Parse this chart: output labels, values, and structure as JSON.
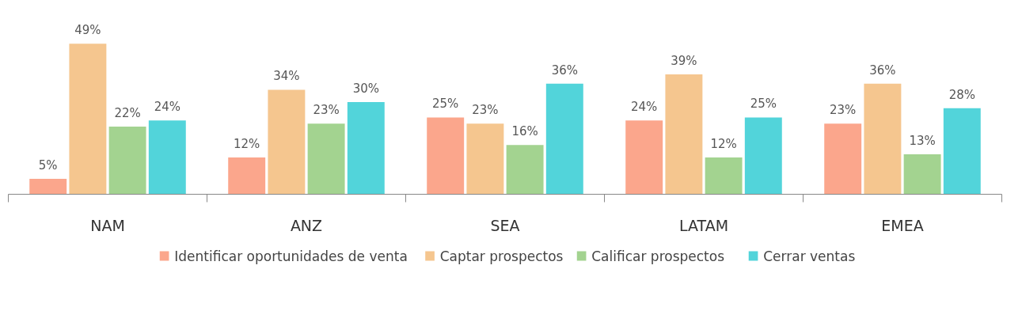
{
  "chart_data": {
    "type": "bar",
    "categories": [
      "NAM",
      "ANZ",
      "SEA",
      "LATAM",
      "EMEA"
    ],
    "series": [
      {
        "name": "Identificar oportunidades de venta",
        "color": "#fba68c",
        "values": [
          5,
          12,
          25,
          24,
          23
        ],
        "value_labels": [
          "5%",
          "12%",
          "25%",
          "24%",
          "23%"
        ]
      },
      {
        "name": "Captar prospectos",
        "color": "#f5c68f",
        "values": [
          49,
          34,
          23,
          39,
          36
        ],
        "value_labels": [
          "49%",
          "34%",
          "23%",
          "39%",
          "36%"
        ]
      },
      {
        "name": "Calificar prospectos",
        "color": "#a3d390",
        "values": [
          22,
          23,
          16,
          12,
          13
        ],
        "value_labels": [
          "22%",
          "23%",
          "16%",
          "12%",
          "13%"
        ]
      },
      {
        "name": "Cerrar ventas",
        "color": "#52d4da",
        "values": [
          24,
          30,
          36,
          25,
          28
        ],
        "value_labels": [
          "24%",
          "30%",
          "36%",
          "25%",
          "28%"
        ]
      }
    ],
    "legend": "bottom"
  }
}
